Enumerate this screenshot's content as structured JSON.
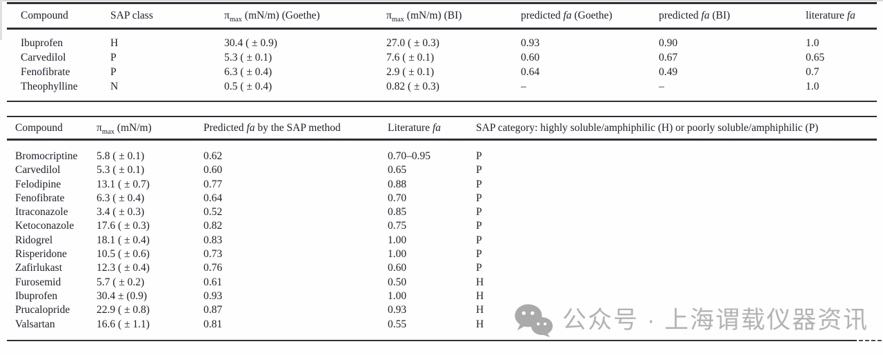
{
  "palette": {
    "ink": "#20202b",
    "rule": "#2e2e36",
    "watermark_grey": "#b3b3b3"
  },
  "table1": {
    "headers": [
      {
        "pre": "Compound"
      },
      {
        "pre": "SAP class"
      },
      {
        "pre": "π",
        "sub": "max",
        "post": " (mN/m) (Goethe)"
      },
      {
        "pre": "π",
        "sub": "max",
        "post": " (mN/m) (BI)"
      },
      {
        "pre": "predicted ",
        "it": "fa",
        "post": " (Goethe)"
      },
      {
        "pre": "predicted ",
        "it": "fa",
        "post": " (BI)"
      },
      {
        "pre": "literature ",
        "it": "fa"
      }
    ],
    "rows": [
      [
        "Ibuprofen",
        "H",
        "30.4 ( ± 0.9)",
        "27.0 ( ± 0.3)",
        "0.93",
        "0.90",
        "1.0"
      ],
      [
        "Carvedilol",
        "P",
        "5.3 ( ± 0.1)",
        "7.6 ( ± 0.1)",
        "0.60",
        "0.67",
        "0.65"
      ],
      [
        "Fenofibrate",
        "P",
        "6.3 ( ± 0.4)",
        "2.9 ( ± 0.1)",
        "0.64",
        "0.49",
        "0.7"
      ],
      [
        "Theophylline",
        "N",
        "0.5 ( ± 0.4)",
        "0.82 ( ± 0.3)",
        "–",
        "–",
        "1.0"
      ]
    ]
  },
  "table2": {
    "headers": [
      {
        "pre": "Compound"
      },
      {
        "pre": "π",
        "sub": "max",
        "post": " (mN/m)"
      },
      {
        "pre": "Predicted ",
        "it": "fa",
        "post": " by the SAP method"
      },
      {
        "pre": "Literature ",
        "it": "fa"
      },
      {
        "pre": "SAP category: highly soluble/amphiphilic (H) or poorly soluble/amphiphilic (P)"
      }
    ],
    "rows": [
      [
        "Bromocriptine",
        "5.8 ( ± 0.1)",
        "0.62",
        "0.70–0.95",
        "P"
      ],
      [
        "Carvedilol",
        "5.3 ( ± 0.1)",
        "0.60",
        "0.65",
        "P"
      ],
      [
        "Felodipine",
        "13.1 ( ± 0.7)",
        "0.77",
        "0.88",
        "P"
      ],
      [
        "Fenofibrate",
        "6.3 ( ± 0.4)",
        "0.64",
        "0.70",
        "P"
      ],
      [
        "Itraconazole",
        "3.4 ( ± 0.3)",
        "0.52",
        "0.85",
        "P"
      ],
      [
        "Ketoconazole",
        "17.6 ( ± 0.3)",
        "0.82",
        "0.75",
        "P"
      ],
      [
        "Ridogrel",
        "18.1 ( ± 0.4)",
        "0.83",
        "1.00",
        "P"
      ],
      [
        "Risperidone",
        "10.5 ( ± 0.6)",
        "0.73",
        "1.00",
        "P"
      ],
      [
        "Zafirlukast",
        "12.3 ( ± 0.4)",
        "0.76",
        "0.60",
        "P"
      ],
      [
        "Furosemid",
        "5.7 ( ± 0.2)",
        "0.61",
        "0.50",
        "H"
      ],
      [
        "Ibuprofen",
        "30.4 ± (0.9)",
        "0.93",
        "1.00",
        "H"
      ],
      [
        "Prucalopride",
        "22.9 ( ± 0.8)",
        "0.87",
        "0.93",
        "H"
      ],
      [
        "Valsartan",
        "16.6 ( ± 1.1)",
        "0.81",
        "0.55",
        "H"
      ]
    ]
  },
  "watermark": {
    "icon": "wechat-icon",
    "text": "公众号 · 上海谓载仪器资讯"
  }
}
